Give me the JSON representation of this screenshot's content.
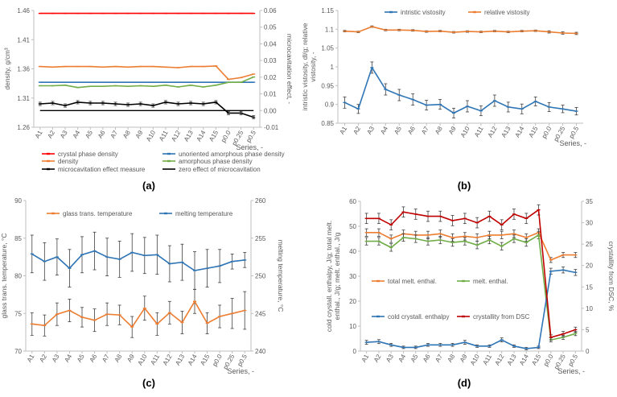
{
  "chart_data": [
    {
      "panel": "(a)",
      "type": "line",
      "categories": [
        "A1",
        "A2",
        "A3",
        "A4",
        "A5",
        "A6",
        "A7",
        "A8",
        "A9",
        "A10",
        "A11",
        "A12",
        "A13",
        "A14",
        "A15",
        "p0.0",
        "p0.25",
        "p0.5"
      ],
      "xlabel": "Series, -",
      "ylabel": "density, g/cm³",
      "y2label": "microcavitation effect, -",
      "ylim": [
        1.26,
        1.46
      ],
      "yticks": [
        "1.26",
        "1.31",
        "1.36",
        "1.41",
        "1.46"
      ],
      "y2lim": [
        -0.01,
        0.06
      ],
      "y2ticks": [
        "-0.01",
        "0.00",
        "0.01",
        "0.02",
        "0.03",
        "0.04",
        "0.05",
        "0.06"
      ],
      "legend_position": "bottom",
      "series": [
        {
          "name": "crystal phase density",
          "axis": "left",
          "color": "#ff0000",
          "values": [
            1.455,
            1.455,
            1.455,
            1.455,
            1.455,
            1.455,
            1.455,
            1.455,
            1.455,
            1.455,
            1.455,
            1.455,
            1.455,
            1.455,
            1.455,
            1.455,
            1.455,
            1.455
          ]
        },
        {
          "name": "unoriented amorphous phase density",
          "axis": "left",
          "color": "#2e75b6",
          "values": [
            1.337,
            1.337,
            1.337,
            1.337,
            1.337,
            1.337,
            1.337,
            1.337,
            1.337,
            1.337,
            1.337,
            1.337,
            1.337,
            1.337,
            1.337,
            1.337,
            1.337,
            1.337
          ]
        },
        {
          "name": "density",
          "axis": "left",
          "color": "#ed7d31",
          "values": [
            1.364,
            1.363,
            1.364,
            1.364,
            1.364,
            1.363,
            1.364,
            1.363,
            1.364,
            1.364,
            1.363,
            1.362,
            1.364,
            1.364,
            1.365,
            1.342,
            1.345,
            1.351
          ]
        },
        {
          "name": "amorphous phase density",
          "axis": "left",
          "color": "#70ad47",
          "values": [
            1.331,
            1.331,
            1.332,
            1.328,
            1.33,
            1.33,
            1.331,
            1.33,
            1.331,
            1.33,
            1.332,
            1.329,
            1.332,
            1.329,
            1.332,
            1.337,
            1.337,
            1.346
          ]
        },
        {
          "name": "microcavitation effect measure",
          "axis": "right",
          "color": "#000000",
          "values": [
            0.004,
            0.0045,
            0.003,
            0.005,
            0.0045,
            0.0045,
            0.004,
            0.0035,
            0.004,
            0.003,
            0.005,
            0.004,
            0.0045,
            0.004,
            0.005,
            -0.0015,
            -0.0015,
            -0.004
          ],
          "errors": [
            0.001,
            0.001,
            0.001,
            0.001,
            0.001,
            0.001,
            0.001,
            0.001,
            0.001,
            0.001,
            0.001,
            0.001,
            0.001,
            0.001,
            0.001,
            0.001,
            0.001,
            0.001
          ]
        },
        {
          "name": "zero effect of microcavitation",
          "axis": "right",
          "color": "#000000",
          "values": [
            0,
            0,
            0,
            0,
            0,
            0,
            0,
            0,
            0,
            0,
            0,
            0,
            0,
            0,
            0,
            0,
            0,
            0
          ]
        }
      ]
    },
    {
      "panel": "(b)",
      "type": "line",
      "categories": [
        "A1",
        "A2",
        "A3",
        "A4",
        "A5",
        "A6",
        "A7",
        "A8",
        "A9",
        "A10",
        "A11",
        "A12",
        "A13",
        "A14",
        "A15",
        "p0.0",
        "p0.25",
        "p0.5"
      ],
      "xlabel": "Series, -",
      "ylabel": "intristic vistosity, dl/g; relative vistosity, -",
      "ylim": [
        0.85,
        1.15
      ],
      "yticks": [
        "0.85",
        "0.9",
        "0.95",
        "1",
        "1.05",
        "1.1",
        "1.15"
      ],
      "legend_position": "top",
      "series": [
        {
          "name": "intristic vistosity",
          "color": "#2e75b6",
          "values": [
            0.905,
            0.888,
            0.998,
            0.94,
            0.925,
            0.913,
            0.898,
            0.9,
            0.877,
            0.895,
            0.883,
            0.91,
            0.893,
            0.888,
            0.908,
            0.893,
            0.888,
            0.882
          ],
          "errors": [
            0.015,
            0.012,
            0.015,
            0.015,
            0.015,
            0.015,
            0.013,
            0.013,
            0.013,
            0.015,
            0.013,
            0.015,
            0.013,
            0.013,
            0.012,
            0.012,
            0.01,
            0.01
          ]
        },
        {
          "name": "relative vistosity",
          "color": "#ed7d31",
          "values": [
            1.095,
            1.093,
            1.107,
            1.098,
            1.098,
            1.097,
            1.094,
            1.095,
            1.092,
            1.094,
            1.093,
            1.095,
            1.093,
            1.095,
            1.096,
            1.093,
            1.09,
            1.089
          ],
          "errors": [
            0.002,
            0.002,
            0.002,
            0.002,
            0.002,
            0.002,
            0.002,
            0.002,
            0.002,
            0.002,
            0.002,
            0.002,
            0.002,
            0.002,
            0.002,
            0.003,
            0.003,
            0.003
          ]
        }
      ]
    },
    {
      "panel": "(c)",
      "type": "line",
      "categories": [
        "A1",
        "A2",
        "A3",
        "A4",
        "A5",
        "A6",
        "A7",
        "A8",
        "A9",
        "A10",
        "A11",
        "A12",
        "A13",
        "A14",
        "A15",
        "p0.0",
        "p0.25",
        "p0.5"
      ],
      "xlabel": "Series, -",
      "ylabel": "glass trans. temperature, °C",
      "y2label": "melting temperature, °C",
      "ylim": [
        70,
        90
      ],
      "yticks": [
        "70",
        "75",
        "80",
        "85",
        "90"
      ],
      "y2lim": [
        240,
        260
      ],
      "y2ticks": [
        "240",
        "245",
        "250",
        "255",
        "260"
      ],
      "legend_position": "top",
      "series": [
        {
          "name": "glass trans. temperature",
          "axis": "left",
          "color": "#ed7d31",
          "values": [
            73.6,
            73.4,
            74.9,
            75.4,
            74.5,
            74.1,
            74.9,
            74.8,
            73.2,
            75.7,
            73.6,
            75.1,
            73.8,
            76.6,
            73.7,
            74.6,
            75.0,
            75.4
          ],
          "errors": [
            1.5,
            1.4,
            1.5,
            1.5,
            1.3,
            1.5,
            1.5,
            1.3,
            1.4,
            1.6,
            1.5,
            1.5,
            1.5,
            1.6,
            1.4,
            1.5,
            2.0,
            2.5
          ]
        },
        {
          "name": "melting temperature",
          "axis": "right",
          "color": "#2e75b6",
          "values": [
            252.9,
            251.9,
            252.5,
            251.0,
            252.8,
            253.3,
            252.5,
            252.2,
            253.1,
            252.7,
            252.8,
            251.6,
            251.8,
            250.7,
            251.0,
            251.3,
            251.9,
            252.1
          ],
          "errors": [
            2.5,
            2.5,
            2.4,
            2.5,
            2.4,
            2.5,
            2.5,
            2.4,
            2.5,
            2.4,
            2.6,
            2.4,
            2.4,
            2.5,
            2.5,
            2.2,
            1.0,
            1.0
          ]
        }
      ]
    },
    {
      "panel": "(d)",
      "type": "line",
      "categories": [
        "A1",
        "A2",
        "A3",
        "A4",
        "A5",
        "A6",
        "A7",
        "A8",
        "A9",
        "A10",
        "A11",
        "A12",
        "A13",
        "A14",
        "A15",
        "p0.0",
        "p0.25",
        "p0.5"
      ],
      "xlabel": "Series, -",
      "ylabel": "cold crystall. enthalpy, J/g; total melt. enthal., J/g; melt. enthal., J/g",
      "y2label": "crystallity from DSC, %",
      "ylim": [
        0,
        60
      ],
      "yticks": [
        "0",
        "10",
        "20",
        "30",
        "40",
        "50",
        "60"
      ],
      "y2lim": [
        0,
        35
      ],
      "y2ticks": [
        "0",
        "5",
        "10",
        "15",
        "20",
        "25",
        "30",
        "35"
      ],
      "legend_position": "center",
      "series": [
        {
          "name": "total melt. enthal.",
          "axis": "left",
          "color": "#ed7d31",
          "values": [
            47.5,
            47.5,
            45.0,
            47.0,
            46.5,
            46.5,
            47.0,
            45.5,
            46.0,
            45.5,
            46.5,
            46.5,
            47.0,
            45.5,
            47.5,
            36.5,
            38.5,
            38.5
          ],
          "errors": [
            1.5,
            1.5,
            1.5,
            1.5,
            1.5,
            1.5,
            1.5,
            1.5,
            1.5,
            1.5,
            1.5,
            1.5,
            1.5,
            1.5,
            1.5,
            1.0,
            1.0,
            1.0
          ]
        },
        {
          "name": "melt. enthal.",
          "axis": "left",
          "color": "#70ad47",
          "values": [
            44.0,
            44.0,
            41.5,
            45.5,
            45.0,
            44.0,
            44.5,
            43.5,
            44.0,
            42.5,
            44.5,
            42.0,
            45.0,
            43.5,
            46.5,
            4.5,
            5.5,
            7.0
          ],
          "errors": [
            1.5,
            1.5,
            1.5,
            1.5,
            1.5,
            1.5,
            1.5,
            1.5,
            1.5,
            1.5,
            1.5,
            1.5,
            1.5,
            1.5,
            1.5,
            0.8,
            0.8,
            0.8
          ]
        },
        {
          "name": "cold crystall. enthalpy",
          "axis": "left",
          "color": "#2e75b6",
          "values": [
            3.5,
            3.8,
            2.5,
            1.5,
            1.5,
            2.5,
            2.5,
            2.5,
            3.5,
            2.0,
            2.0,
            4.5,
            2.0,
            1.0,
            1.5,
            32.0,
            32.5,
            31.5
          ],
          "errors": [
            0.8,
            0.8,
            0.6,
            0.5,
            0.5,
            0.6,
            0.6,
            0.6,
            0.8,
            0.5,
            0.5,
            0.8,
            0.5,
            0.5,
            0.5,
            1.2,
            1.2,
            1.2
          ]
        },
        {
          "name": "crystallity from DSC",
          "axis": "right",
          "color": "#c00000",
          "values": [
            31.0,
            31.0,
            29.5,
            32.5,
            32.0,
            31.5,
            31.5,
            30.5,
            31.0,
            30.0,
            31.5,
            29.5,
            32.0,
            31.0,
            33.0,
            3.2,
            4.0,
            5.0
          ],
          "errors": [
            1.2,
            1.2,
            1.2,
            1.2,
            1.2,
            1.2,
            1.2,
            1.2,
            1.2,
            1.2,
            1.2,
            1.2,
            1.2,
            1.2,
            1.2,
            0.6,
            0.6,
            0.6
          ]
        }
      ]
    }
  ]
}
